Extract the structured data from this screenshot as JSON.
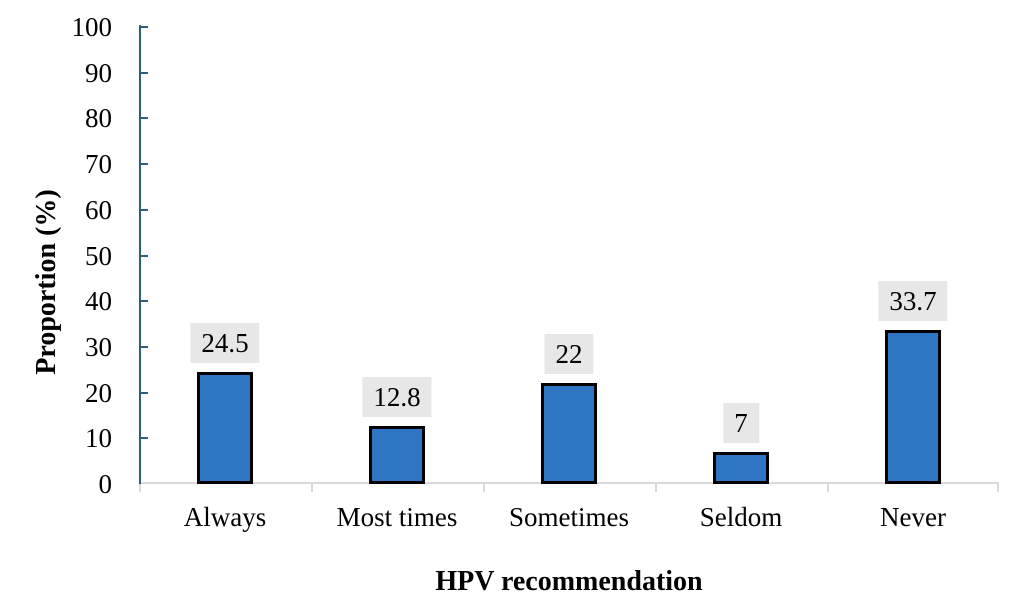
{
  "chart_data": {
    "type": "bar",
    "title": "",
    "categories": [
      "Always",
      "Most times",
      "Sometimes",
      "Seldom",
      "Never"
    ],
    "values": [
      24.5,
      12.8,
      22,
      7,
      33.7
    ],
    "value_labels": [
      "24.5",
      "12.8",
      "22",
      "7",
      "33.7"
    ],
    "xlabel": "HPV recommendation",
    "ylabel": "Proportion (%)",
    "ylim": [
      0,
      100
    ],
    "ytick_step": 10,
    "ytick_labels": [
      "0",
      "10",
      "20",
      "30",
      "40",
      "50",
      "60",
      "70",
      "80",
      "90",
      "100"
    ],
    "grid": false,
    "legend": false,
    "colors": {
      "bar_fill": "#2E75C3",
      "bar_border": "#000000",
      "y_axis_line": "#2B5F7E",
      "x_axis_line": "#D9D9D9",
      "value_label_bg": "#E8E7E7",
      "text": "#000000"
    }
  }
}
